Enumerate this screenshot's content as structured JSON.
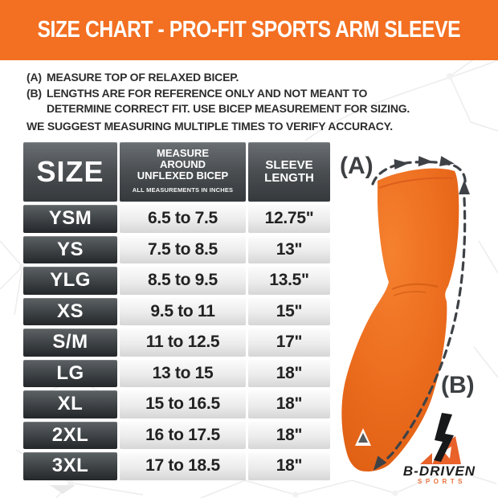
{
  "header": {
    "title": "SIZE CHART - PRO-FIT SPORTS ARM SLEEVE"
  },
  "notes": {
    "a_prefix": "(A)",
    "a_text": "MEASURE TOP OF RELAXED BICEP.",
    "b_prefix": "(B)",
    "b_text_line1": "LENGTHS ARE FOR REFERENCE ONLY AND NOT MEANT TO",
    "b_text_line2": "DETERMINE CORRECT FIT. USE BICEP MEASUREMENT FOR SIZING.",
    "footer": "WE SUGGEST MEASURING MULTIPLE TIMES TO VERIFY ACCURACY."
  },
  "table": {
    "header": {
      "col1": "SIZE",
      "col2_lines": [
        "MEASURE",
        "AROUND",
        "UNFLEXED BICEP"
      ],
      "col2_sub": "ALL MEASUREMENTS IN INCHES",
      "col3_lines": [
        "SLEEVE",
        "LENGTH"
      ]
    },
    "rows": [
      {
        "size": "YSM",
        "bicep": "6.5 to 7.5",
        "length": "12.75\""
      },
      {
        "size": "YS",
        "bicep": "7.5 to 8.5",
        "length": "13\""
      },
      {
        "size": "YLG",
        "bicep": "8.5 to 9.5",
        "length": "13.5\""
      },
      {
        "size": "XS",
        "bicep": "9.5 to 11",
        "length": "15\""
      },
      {
        "size": "S/M",
        "bicep": "11 to 12.5",
        "length": "17\""
      },
      {
        "size": "LG",
        "bicep": "13 to 15",
        "length": "18\""
      },
      {
        "size": "XL",
        "bicep": "15 to 16.5",
        "length": "18\""
      },
      {
        "size": "2XL",
        "bicep": "16 to 17.5",
        "length": "18\""
      },
      {
        "size": "3XL",
        "bicep": "17 to 18.5",
        "length": "18\""
      }
    ]
  },
  "chart_data": {
    "type": "table",
    "title": "SIZE CHART - PRO-FIT SPORTS ARM SLEEVE",
    "columns": [
      "SIZE",
      "MEASURE AROUND UNFLEXED BICEP (ALL MEASUREMENTS IN INCHES)",
      "SLEEVE LENGTH"
    ],
    "rows": [
      [
        "YSM",
        "6.5 to 7.5",
        "12.75\""
      ],
      [
        "YS",
        "7.5 to 8.5",
        "13\""
      ],
      [
        "YLG",
        "8.5 to 9.5",
        "13.5\""
      ],
      [
        "XS",
        "9.5 to 11",
        "15\""
      ],
      [
        "S/M",
        "11 to 12.5",
        "17\""
      ],
      [
        "LG",
        "13 to 15",
        "18\""
      ],
      [
        "XL",
        "15 to 16.5",
        "18\""
      ],
      [
        "2XL",
        "16 to 17.5",
        "18\""
      ],
      [
        "3XL",
        "17 to 18.5",
        "18\""
      ]
    ],
    "annotations": [
      "(A) bicep circumference arrow",
      "(B) sleeve length arrow"
    ]
  },
  "illustration": {
    "label_a": "(A)",
    "label_b": "(B)"
  },
  "logo": {
    "brand": "B-DRIVEN",
    "sub_brand": "SPORTS"
  },
  "colors": {
    "accent_orange": "#F36F21",
    "sleeve_orange": "#EC6C1E",
    "table_dark": "#34383B",
    "arrow_gray": "#3E4246",
    "logo_orange": "#E8713B"
  }
}
